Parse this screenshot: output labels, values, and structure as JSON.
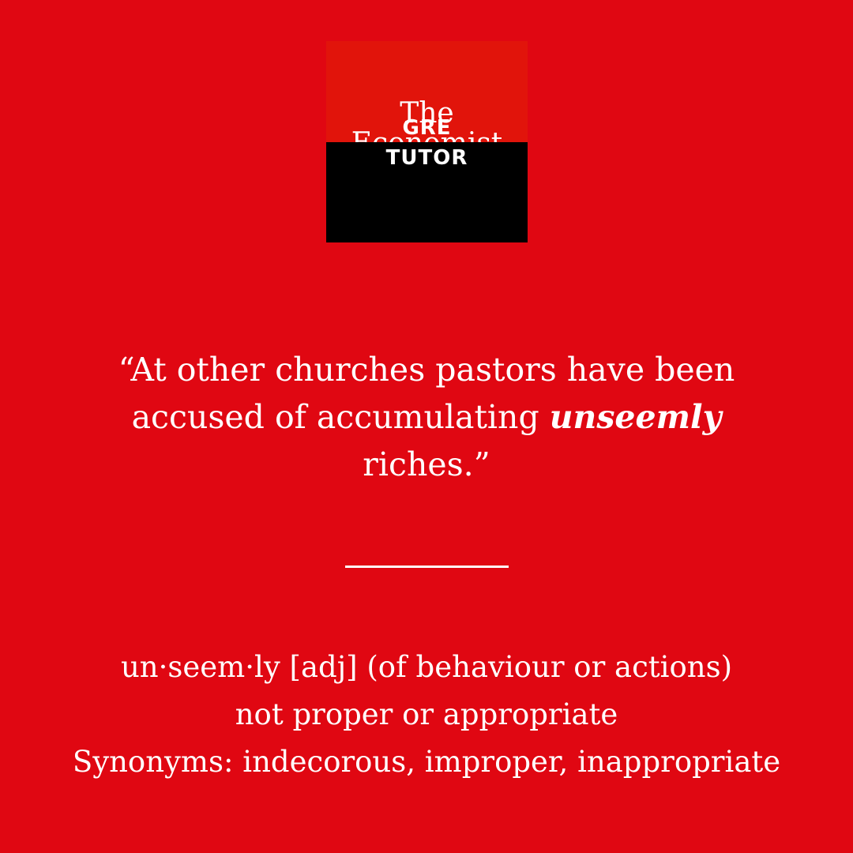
{
  "colors": {
    "background": "#e00712",
    "logo_top": "#e1140b",
    "logo_bottom": "#000000",
    "text": "#ffffff",
    "divider": "#ffffff"
  },
  "logo": {
    "line1": "The",
    "line2": "Economist",
    "badge_line1": "GRE",
    "badge_line2": "TUTOR"
  },
  "quote": {
    "before": "“At other churches pastors have been accused of accumulating ",
    "highlight": "unseemly",
    "after": " riches.”"
  },
  "definition": {
    "line1": "un·seem·ly [adj] (of behaviour or actions)",
    "line2": "not proper or appropriate",
    "line3": "Synonyms: indecorous, improper, inappropriate"
  }
}
